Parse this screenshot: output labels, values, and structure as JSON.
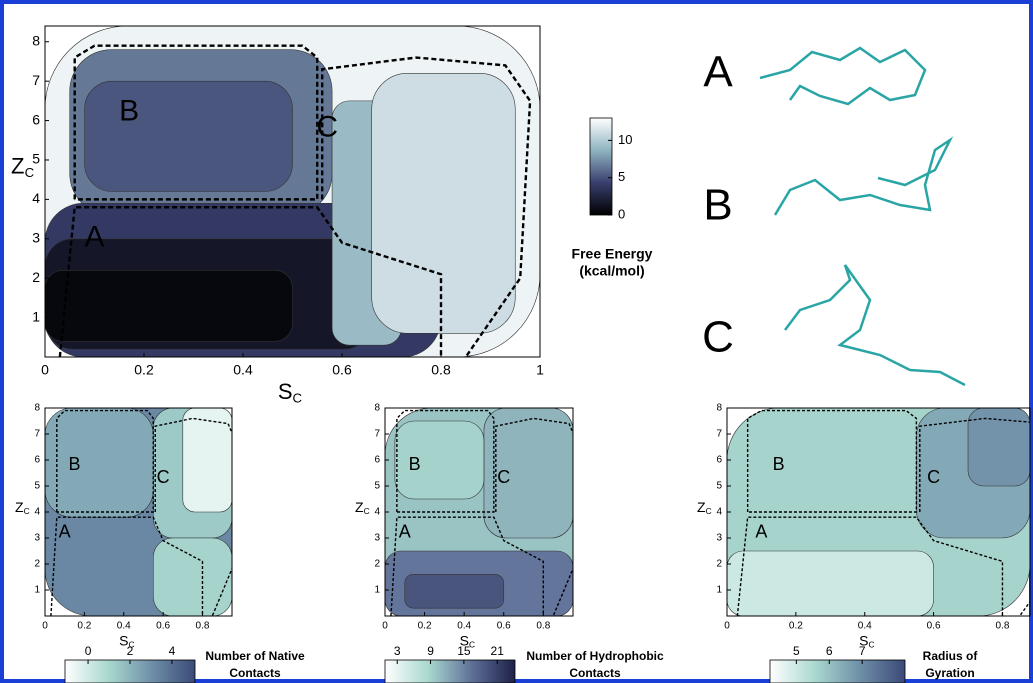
{
  "chart_data": [
    {
      "type": "contour",
      "xlim": [
        0,
        1
      ],
      "xticks": [
        0,
        0.2,
        0.4,
        0.6,
        0.8,
        1
      ],
      "ylim": [
        0,
        8.4
      ],
      "yticks": [
        1,
        2,
        3,
        4,
        5,
        6,
        7,
        8
      ],
      "x_label": {
        "main": "S",
        "sub": "C"
      },
      "y_label": {
        "main": "Z",
        "sub": "C"
      },
      "region_labels": [
        "A",
        "B",
        "C"
      ],
      "colorbar": {
        "label": [
          "Free Energy",
          "(kcal/mol)"
        ],
        "lim": [
          0,
          13
        ],
        "ticks": [
          0,
          5,
          10
        ],
        "colors": [
          "#000000",
          "#3a3f6e",
          "#8fb3c0",
          "#ffffff"
        ]
      }
    },
    {
      "type": "contour",
      "xlim": [
        0,
        0.95
      ],
      "xticks": [
        0,
        0.2,
        0.4,
        0.6,
        0.8
      ],
      "ylim": [
        0,
        8
      ],
      "yticks": [
        1,
        2,
        3,
        4,
        5,
        6,
        7,
        8
      ],
      "x_label": {
        "main": "S",
        "sub": "C"
      },
      "y_label": {
        "main": "Z",
        "sub": "C"
      },
      "region_labels": [
        "A",
        "B",
        "C"
      ],
      "colorbar": {
        "label": [
          "Number of Native",
          "Contacts"
        ],
        "lim": [
          -1.1,
          5.1
        ],
        "ticks": [
          0,
          2,
          4
        ],
        "colors": [
          "#ffffff",
          "#a9d8cf",
          "#6f8fa8",
          "#3b4a78"
        ]
      }
    },
    {
      "type": "contour",
      "xlim": [
        0,
        0.95
      ],
      "xticks": [
        0,
        0.2,
        0.4,
        0.6,
        0.8
      ],
      "ylim": [
        0,
        8
      ],
      "yticks": [
        1,
        2,
        3,
        4,
        5,
        6,
        7,
        8
      ],
      "x_label": {
        "main": "S",
        "sub": "C"
      },
      "y_label": {
        "main": "Z",
        "sub": "C"
      },
      "region_labels": [
        "A",
        "B",
        "C"
      ],
      "colorbar": {
        "label": [
          "Number of Hydrophobic",
          "Contacts"
        ],
        "lim": [
          0.8,
          24.2
        ],
        "ticks": [
          3,
          9,
          15,
          21
        ],
        "colors": [
          "#ffffff",
          "#a9d8cf",
          "#5f7098",
          "#1d2148"
        ]
      }
    },
    {
      "type": "contour",
      "xlim": [
        0,
        0.88
      ],
      "xticks": [
        0,
        0.2,
        0.4,
        0.6,
        0.8
      ],
      "ylim": [
        0,
        8
      ],
      "yticks": [
        1,
        2,
        3,
        4,
        5,
        6,
        7,
        8
      ],
      "x_label": {
        "main": "S",
        "sub": "C"
      },
      "y_label": {
        "main": "Z",
        "sub": "C"
      },
      "region_labels": [
        "A",
        "B",
        "C"
      ],
      "colorbar": {
        "label": [
          "Radius of",
          "Gyration"
        ],
        "lim": [
          4.2,
          8.3
        ],
        "ticks": [
          5,
          6,
          7
        ],
        "colors": [
          "#ffffff",
          "#a9d8cf",
          "#6f8fa8",
          "#3b4a78"
        ]
      }
    }
  ],
  "structures": {
    "labels": [
      "A",
      "B",
      "C"
    ]
  }
}
